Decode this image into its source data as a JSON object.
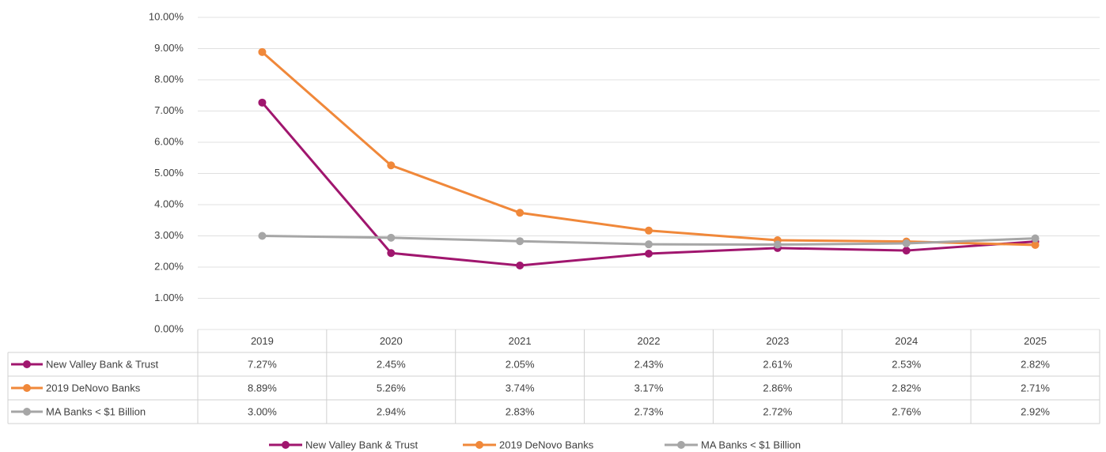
{
  "chart_data": {
    "type": "line",
    "categories": [
      "2019",
      "2020",
      "2021",
      "2022",
      "2023",
      "2024",
      "2025"
    ],
    "series": [
      {
        "name": "New Valley Bank & Trust",
        "color": "#a0166e",
        "values": [
          7.27,
          2.45,
          2.05,
          2.43,
          2.61,
          2.53,
          2.82
        ],
        "value_labels": [
          "7.27%",
          "2.45%",
          "2.05%",
          "2.43%",
          "2.61%",
          "2.53%",
          "2.82%"
        ]
      },
      {
        "name": "2019 DeNovo Banks",
        "color": "#f0883a",
        "values": [
          8.89,
          5.26,
          3.74,
          3.17,
          2.86,
          2.82,
          2.71
        ],
        "value_labels": [
          "8.89%",
          "5.26%",
          "3.74%",
          "3.17%",
          "2.86%",
          "2.82%",
          "2.71%"
        ]
      },
      {
        "name": "MA Banks < $1 Billion",
        "color": "#a6a6a6",
        "values": [
          3.0,
          2.94,
          2.83,
          2.73,
          2.72,
          2.76,
          2.92
        ],
        "value_labels": [
          "3.00%",
          "2.94%",
          "2.83%",
          "2.73%",
          "2.72%",
          "2.76%",
          "2.92%"
        ]
      }
    ],
    "ylim": [
      0,
      10
    ],
    "yticks": [
      {
        "value": 0,
        "label": "0.00%"
      },
      {
        "value": 1,
        "label": "1.00%"
      },
      {
        "value": 2,
        "label": "2.00%"
      },
      {
        "value": 3,
        "label": "3.00%"
      },
      {
        "value": 4,
        "label": "4.00%"
      },
      {
        "value": 5,
        "label": "5.00%"
      },
      {
        "value": 6,
        "label": "6.00%"
      },
      {
        "value": 7,
        "label": "7.00%"
      },
      {
        "value": 8,
        "label": "8.00%"
      },
      {
        "value": 9,
        "label": "9.00%"
      },
      {
        "value": 10,
        "label": "10.00%"
      }
    ],
    "grid": true,
    "legend": "bottom"
  }
}
